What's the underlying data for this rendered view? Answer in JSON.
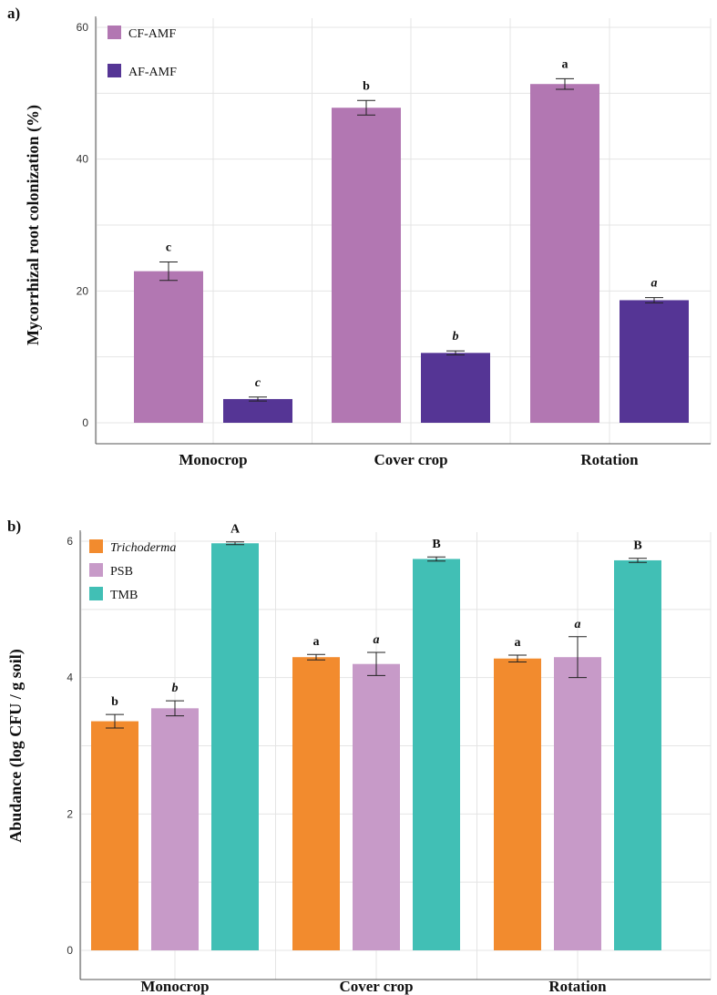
{
  "chart_data": [
    {
      "panel_label": "a)",
      "type": "bar",
      "ylabel": "Mycorrhizal root colonization (%)",
      "xlabel": "",
      "ylim": [
        0,
        60
      ],
      "yticks": [
        0,
        20,
        40,
        60
      ],
      "grid": true,
      "legend_position": "top-left",
      "categories": [
        "Monocrop",
        "Cover crop",
        "Rotation"
      ],
      "series": [
        {
          "name": "CF-AMF",
          "italic": false,
          "color": "#b277b2",
          "sig_italic": false,
          "values": [
            23.0,
            47.8,
            51.4
          ],
          "errors": [
            1.4,
            1.1,
            0.8
          ],
          "labels": [
            "c",
            "b",
            "a"
          ]
        },
        {
          "name": "AF-AMF",
          "italic": false,
          "color": "#553595",
          "sig_italic": true,
          "values": [
            3.6,
            10.6,
            18.6
          ],
          "errors": [
            0.3,
            0.3,
            0.4
          ],
          "labels": [
            "c",
            "b",
            "a"
          ]
        }
      ]
    },
    {
      "panel_label": "b)",
      "type": "bar",
      "ylabel": "Abudance (log CFU / g soil)",
      "xlabel": "",
      "ylim": [
        0,
        6
      ],
      "yticks": [
        0,
        2,
        4,
        6
      ],
      "grid": true,
      "legend_position": "top-left",
      "categories": [
        "Monocrop",
        "Cover crop",
        "Rotation"
      ],
      "series": [
        {
          "name": "Trichoderma",
          "italic": true,
          "color": "#f28b2e",
          "sig_italic": false,
          "values": [
            3.36,
            4.3,
            4.28
          ],
          "errors": [
            0.1,
            0.04,
            0.05
          ],
          "labels": [
            "b",
            "a",
            "a"
          ]
        },
        {
          "name": "PSB",
          "italic": false,
          "color": "#c79ac8",
          "sig_italic": true,
          "values": [
            3.55,
            4.2,
            4.3
          ],
          "errors": [
            0.11,
            0.17,
            0.3
          ],
          "labels": [
            "b",
            "a",
            "a"
          ]
        },
        {
          "name": "TMB",
          "italic": false,
          "color": "#41bfb5",
          "sig_italic": false,
          "values": [
            5.97,
            5.74,
            5.72
          ],
          "errors": [
            0.02,
            0.03,
            0.03
          ],
          "labels": [
            "A",
            "B",
            "B"
          ]
        }
      ]
    }
  ]
}
